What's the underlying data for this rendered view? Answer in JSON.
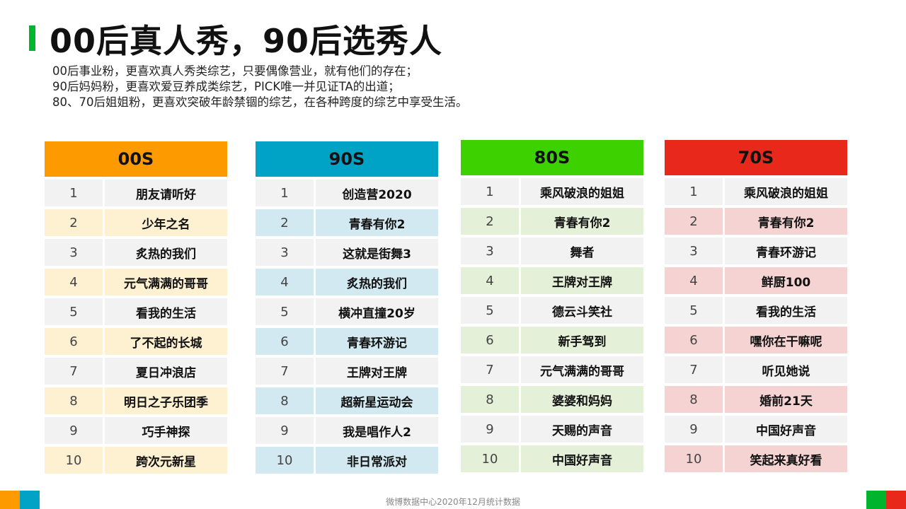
{
  "title": "00后真人秀，90后选秀人",
  "description": [
    "00后事业粉，更喜欢真人秀类综艺，只要偶像营业，就有他们的存在；",
    "90后妈妈粉，更喜欢爱豆养成类综艺，PICK唯一并见证TA的出道；",
    "80、70后姐姐粉，更喜欢突破年龄禁锢的综艺，在各种跨度的综艺中享受生活。"
  ],
  "columns": [
    {
      "header": "00S",
      "header_color": "#fd9a00",
      "row_alt_color": "#fdf1d2",
      "row_base_color": "#f2f2f2",
      "items": [
        {
          "rank": "1",
          "name": "朋友请听好"
        },
        {
          "rank": "2",
          "name": "少年之名"
        },
        {
          "rank": "3",
          "name": "炙热的我们"
        },
        {
          "rank": "4",
          "name": "元气满满的哥哥"
        },
        {
          "rank": "5",
          "name": "看我的生活"
        },
        {
          "rank": "6",
          "name": "了不起的长城"
        },
        {
          "rank": "7",
          "name": "夏日冲浪店"
        },
        {
          "rank": "8",
          "name": "明日之子乐团季"
        },
        {
          "rank": "9",
          "name": "巧手神探"
        },
        {
          "rank": "10",
          "name": "跨次元新星"
        }
      ]
    },
    {
      "header": "90S",
      "header_color": "#00a3c6",
      "row_alt_color": "#d3e9f1",
      "row_base_color": "#f2f2f2",
      "items": [
        {
          "rank": "1",
          "name": "创造营2020"
        },
        {
          "rank": "2",
          "name": "青春有你2"
        },
        {
          "rank": "3",
          "name": "这就是街舞3"
        },
        {
          "rank": "4",
          "name": "炙热的我们"
        },
        {
          "rank": "5",
          "name": "横冲直撞20岁"
        },
        {
          "rank": "6",
          "name": "青春环游记"
        },
        {
          "rank": "7",
          "name": "王牌对王牌"
        },
        {
          "rank": "8",
          "name": "超新星运动会"
        },
        {
          "rank": "9",
          "name": "我是唱作人2"
        },
        {
          "rank": "10",
          "name": "非日常派对"
        }
      ]
    },
    {
      "header": "80S",
      "header_color": "#3dd100",
      "row_alt_color": "#e4f0d8",
      "row_base_color": "#f2f2f2",
      "items": [
        {
          "rank": "1",
          "name": "乘风破浪的姐姐"
        },
        {
          "rank": "2",
          "name": "青春有你2"
        },
        {
          "rank": "3",
          "name": "舞者"
        },
        {
          "rank": "4",
          "name": "王牌对王牌"
        },
        {
          "rank": "5",
          "name": "德云斗笑社"
        },
        {
          "rank": "6",
          "name": "新手驾到"
        },
        {
          "rank": "7",
          "name": "元气满满的哥哥"
        },
        {
          "rank": "8",
          "name": "婆婆和妈妈"
        },
        {
          "rank": "9",
          "name": "天赐的声音"
        },
        {
          "rank": "10",
          "name": "中国好声音"
        }
      ]
    },
    {
      "header": "70S",
      "header_color": "#e8281a",
      "row_alt_color": "#f5d3d3",
      "row_base_color": "#f2f2f2",
      "items": [
        {
          "rank": "1",
          "name": "乘风破浪的姐姐"
        },
        {
          "rank": "2",
          "name": "青春有你2"
        },
        {
          "rank": "3",
          "name": "青春环游记"
        },
        {
          "rank": "4",
          "name": "鲜厨100"
        },
        {
          "rank": "5",
          "name": "看我的生活"
        },
        {
          "rank": "6",
          "name": "嘿你在干嘛呢"
        },
        {
          "rank": "7",
          "name": "听见她说"
        },
        {
          "rank": "8",
          "name": "婚前21天"
        },
        {
          "rank": "9",
          "name": "中国好声音"
        },
        {
          "rank": "10",
          "name": "笑起来真好看"
        }
      ]
    }
  ],
  "footer": "微博数据中心2020年12月统计数据",
  "accent_colors": {
    "green": "#00b52e",
    "orange": "#fd9a00",
    "blue": "#00a3c6",
    "red": "#e8281a"
  }
}
